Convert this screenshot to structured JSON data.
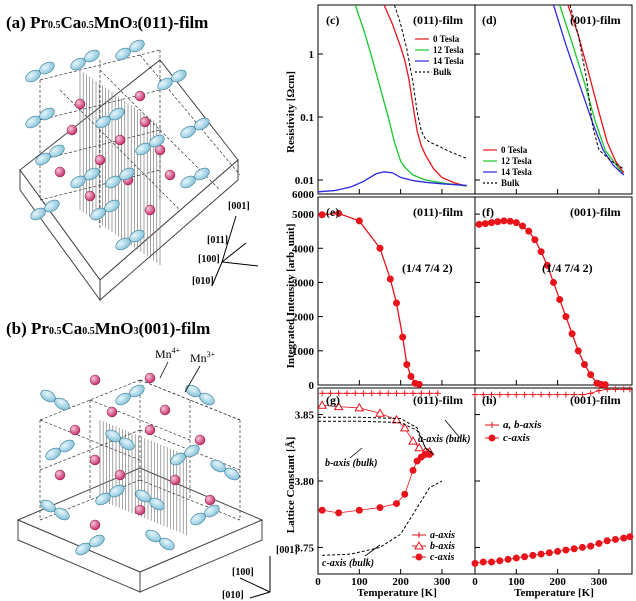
{
  "panel_a": {
    "label": "(a)",
    "title_prefix": "Pr",
    "title_sub1": "0.5",
    "title_mid": "Ca",
    "title_sub2": "0.5",
    "title_suffix": "MnO",
    "title_sub3": "3",
    "title_film": "(011)-film",
    "axes": {
      "a001": "[001]",
      "a011": "[011]",
      "a100": "[100]",
      "a010": "[010]"
    }
  },
  "panel_b": {
    "label": "(b)",
    "title_prefix": "Pr",
    "title_sub1": "0.5",
    "title_mid": "Ca",
    "title_sub2": "0.5",
    "title_suffix": "MnO",
    "title_sub3": "3",
    "title_film": "(001)-film",
    "mn4": "Mn",
    "mn4_sup": "4+",
    "mn3": "Mn",
    "mn3_sup": "3+",
    "axes": {
      "a001": "[001]",
      "a100": "[100]",
      "a010": "[010]"
    }
  },
  "labels": {
    "c": "(c)",
    "c_film": "(011)-film",
    "d": "(d)",
    "d_film": "(001)-film",
    "e": "(e)",
    "e_film": "(011)-film",
    "f": "(f)",
    "f_film": "(001)-film",
    "g": "(g)",
    "g_film": "(011)-film",
    "h": "(h)",
    "h_film": "(001)-film",
    "reflection_e": "(1/4 7/4 2)",
    "reflection_f": "(1/4 7/4 2)",
    "ylabel_res": "Resistivity [Ωcm]",
    "ylabel_int": "Integrated Intensity [arb. unit]",
    "ylabel_lat": "Lattice Constant [Å]",
    "xlabel_g": "Temperature [K]",
    "xlabel_h": "Temperature [K]",
    "g_a_bulk": "a-axis (bulk)",
    "g_b_bulk": "b-axis (bulk)",
    "g_c_bulk": "c-axis (bulk)"
  },
  "legend_c": [
    "0 Tesla",
    "12 Tesla",
    "14 Tesla",
    "Bulk"
  ],
  "legend_d": [
    "0 Tesla",
    "12 Tesla",
    "14 Tesla",
    "Bulk"
  ],
  "legend_g": [
    "a-axis",
    "b-axis",
    "c-axis"
  ],
  "legend_h": [
    "a, b-axis",
    "c-axis"
  ],
  "colors": {
    "red": "#e8131b",
    "green": "#19c62b",
    "blue": "#2a2adf",
    "black": "#000000",
    "ion": "#e2558a",
    "orbital": "#a7d8ea"
  },
  "ticks": {
    "res_y": [
      "1",
      "0.1",
      "0.01",
      "6000"
    ],
    "int_y": [
      "5000",
      "4000",
      "3000",
      "2000",
      "1000",
      "0"
    ],
    "lat_y": [
      "3.85",
      "3.80",
      "3.75"
    ],
    "x_g": [
      "0",
      "100",
      "200",
      "300"
    ],
    "x_h": [
      "0",
      "100",
      "200",
      "300"
    ]
  },
  "chart_data": [
    {
      "type": "line",
      "panel": "c",
      "scale": "log",
      "xlim": [
        0,
        380
      ],
      "ylim": [
        0.006,
        6
      ],
      "series": [
        {
          "name": "0 Tesla",
          "color": "red",
          "x": [
            160,
            180,
            200,
            210,
            220,
            230,
            240,
            250,
            260,
            280,
            300,
            330,
            360
          ],
          "y": [
            6,
            3,
            1.3,
            0.8,
            0.4,
            0.15,
            0.06,
            0.035,
            0.025,
            0.015,
            0.011,
            0.009,
            0.008
          ]
        },
        {
          "name": "12 Tesla",
          "color": "green",
          "x": [
            90,
            110,
            130,
            150,
            170,
            185,
            200,
            210,
            230,
            260,
            300,
            360
          ],
          "y": [
            6,
            2.5,
            0.9,
            0.3,
            0.1,
            0.04,
            0.02,
            0.016,
            0.012,
            0.01,
            0.009,
            0.008
          ]
        },
        {
          "name": "14 Tesla",
          "color": "blue",
          "x": [
            0,
            40,
            80,
            110,
            140,
            160,
            180,
            200,
            230,
            260,
            300,
            360
          ],
          "y": [
            0.0065,
            0.0068,
            0.0078,
            0.0095,
            0.0125,
            0.0135,
            0.013,
            0.011,
            0.0098,
            0.0092,
            0.0087,
            0.0082
          ]
        },
        {
          "name": "Bulk",
          "color": "black",
          "x": [
            185,
            200,
            215,
            230,
            240,
            250,
            260,
            270,
            290,
            320,
            360
          ],
          "y": [
            6,
            3,
            1.2,
            0.35,
            0.12,
            0.06,
            0.045,
            0.04,
            0.035,
            0.028,
            0.022
          ]
        }
      ]
    },
    {
      "type": "line",
      "panel": "d",
      "scale": "log",
      "xlim": [
        0,
        380
      ],
      "ylim": [
        0.006,
        6
      ],
      "series": [
        {
          "name": "0 Tesla",
          "color": "red",
          "x": [
            225,
            250,
            275,
            300,
            320,
            340,
            360
          ],
          "y": [
            6,
            2,
            0.5,
            0.12,
            0.04,
            0.02,
            0.013
          ]
        },
        {
          "name": "12 Tesla",
          "color": "green",
          "x": [
            205,
            235,
            265,
            290,
            315,
            340,
            360
          ],
          "y": [
            6,
            1.5,
            0.35,
            0.09,
            0.03,
            0.018,
            0.012
          ]
        },
        {
          "name": "14 Tesla",
          "color": "blue",
          "x": [
            190,
            220,
            255,
            285,
            310,
            335,
            360
          ],
          "y": [
            6,
            1.4,
            0.3,
            0.08,
            0.03,
            0.017,
            0.012
          ]
        },
        {
          "name": "Bulk",
          "color": "black",
          "x": [
            230,
            250,
            270,
            285,
            300,
            330,
            360
          ],
          "y": [
            6,
            2,
            0.4,
            0.07,
            0.03,
            0.02,
            0.015
          ]
        }
      ]
    },
    {
      "type": "line",
      "panel": "e",
      "xlim": [
        0,
        380
      ],
      "ylim": [
        0,
        5500
      ],
      "series": [
        {
          "name": "",
          "color": "red",
          "x": [
            10,
            50,
            100,
            150,
            175,
            190,
            205,
            215,
            225,
            235,
            245
          ],
          "y": [
            4980,
            5020,
            4800,
            4000,
            3100,
            2400,
            1400,
            600,
            250,
            50,
            20
          ]
        }
      ]
    },
    {
      "type": "line",
      "panel": "f",
      "xlim": [
        0,
        380
      ],
      "ylim": [
        0,
        5500
      ],
      "series": [
        {
          "name": "",
          "color": "red",
          "x": [
            10,
            25,
            40,
            55,
            70,
            85,
            100,
            115,
            130,
            145,
            160,
            175,
            190,
            205,
            220,
            235,
            250,
            265,
            280,
            295,
            305,
            315
          ],
          "y": [
            4700,
            4720,
            4750,
            4780,
            4800,
            4790,
            4750,
            4650,
            4500,
            4250,
            3900,
            3500,
            3000,
            2500,
            2000,
            1500,
            1000,
            600,
            300,
            50,
            20,
            10
          ]
        }
      ]
    },
    {
      "type": "scatter",
      "panel": "g",
      "xlim": [
        0,
        380
      ],
      "ylim": [
        3.73,
        3.87
      ],
      "series": [
        {
          "name": "a-axis",
          "color": "red",
          "x": [
            10,
            30,
            50,
            70,
            90,
            110,
            130,
            150,
            170,
            190,
            210,
            230,
            250,
            270,
            290
          ],
          "y": [
            3.866,
            3.866,
            3.866,
            3.866,
            3.866,
            3.866,
            3.866,
            3.866,
            3.866,
            3.866,
            3.866,
            3.866,
            3.866,
            3.866,
            3.866
          ]
        },
        {
          "name": "b-axis",
          "color": "red",
          "x": [
            10,
            50,
            100,
            150,
            190,
            210,
            230,
            245,
            260,
            270
          ],
          "y": [
            3.857,
            3.856,
            3.855,
            3.851,
            3.846,
            3.84,
            3.83,
            3.825,
            3.822,
            3.822
          ]
        },
        {
          "name": "c-axis",
          "color": "red",
          "x": [
            10,
            50,
            100,
            150,
            190,
            210,
            230,
            240,
            250,
            260,
            270
          ],
          "y": [
            3.778,
            3.776,
            3.778,
            3.78,
            3.783,
            3.79,
            3.808,
            3.815,
            3.818,
            3.82,
            3.82
          ]
        },
        {
          "name": "a-axis (bulk)",
          "color": "black",
          "x": [
            0,
            100,
            200,
            240,
            260,
            280
          ],
          "y": [
            3.848,
            3.848,
            3.847,
            3.84,
            3.825,
            3.82
          ]
        },
        {
          "name": "b-axis (bulk)",
          "color": "black",
          "x": [
            0,
            100,
            200,
            240,
            260,
            280
          ],
          "y": [
            3.845,
            3.845,
            3.844,
            3.838,
            3.825,
            3.82
          ]
        },
        {
          "name": "c-axis (bulk)",
          "color": "black",
          "x": [
            10,
            80,
            150,
            200,
            240,
            270,
            300
          ],
          "y": [
            3.744,
            3.745,
            3.75,
            3.76,
            3.78,
            3.795,
            3.8
          ]
        }
      ]
    },
    {
      "type": "scatter",
      "panel": "h",
      "xlim": [
        0,
        380
      ],
      "ylim": [
        3.73,
        3.87
      ],
      "series": [
        {
          "name": "a, b-axis",
          "color": "red",
          "x": [
            0,
            20,
            40,
            60,
            80,
            100,
            120,
            140,
            160,
            180,
            200,
            220,
            240,
            260,
            280,
            300,
            320,
            340,
            360,
            375
          ],
          "y": [
            3.865,
            3.865,
            3.865,
            3.865,
            3.865,
            3.865,
            3.865,
            3.865,
            3.865,
            3.865,
            3.865,
            3.865,
            3.865,
            3.865,
            3.866,
            3.868,
            3.869,
            3.869,
            3.869,
            3.869
          ]
        },
        {
          "name": "c-axis",
          "color": "red",
          "x": [
            0,
            20,
            40,
            60,
            80,
            100,
            120,
            140,
            160,
            180,
            200,
            220,
            240,
            260,
            280,
            300,
            320,
            340,
            360,
            375
          ],
          "y": [
            3.738,
            3.739,
            3.739,
            3.74,
            3.741,
            3.742,
            3.743,
            3.744,
            3.745,
            3.746,
            3.747,
            3.748,
            3.749,
            3.75,
            3.751,
            3.753,
            3.755,
            3.756,
            3.757,
            3.758
          ]
        }
      ]
    }
  ]
}
